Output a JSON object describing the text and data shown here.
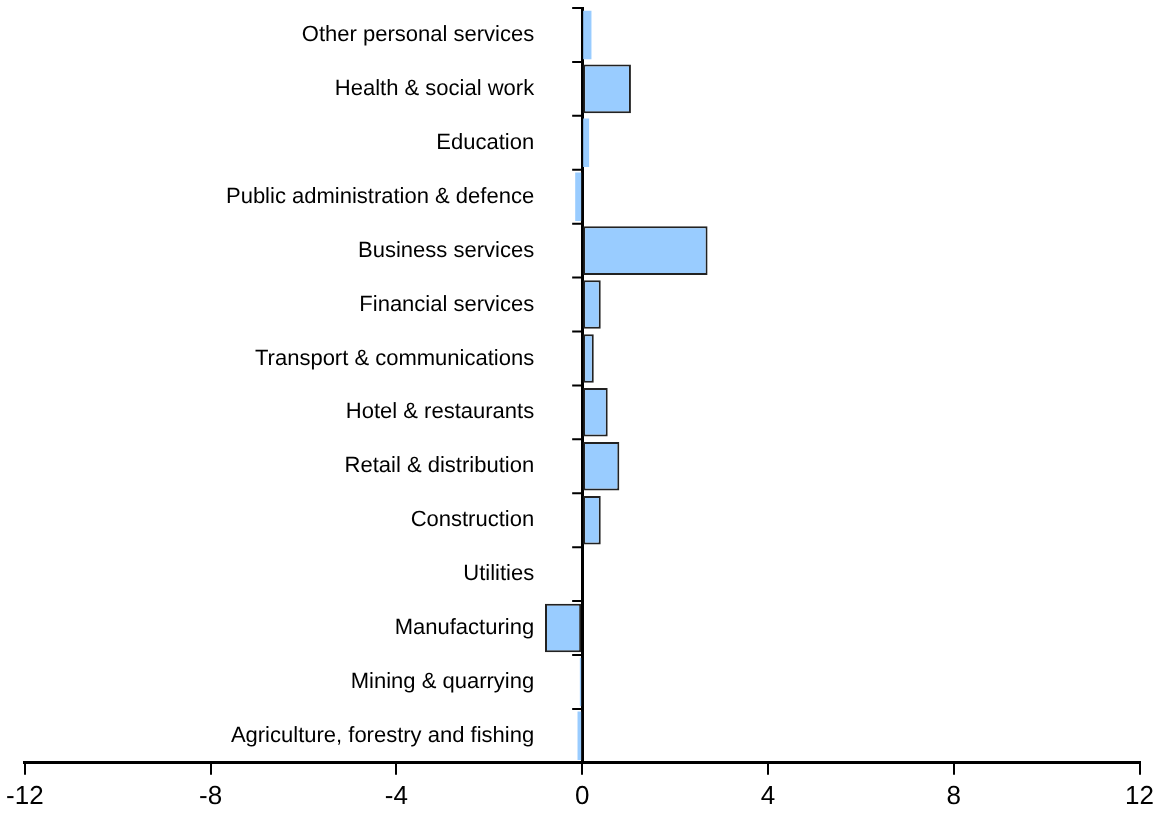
{
  "chart_data": {
    "type": "bar",
    "orientation": "horizontal",
    "categories": [
      "Other personal services",
      "Health & social work",
      "Education",
      "Public administration & defence",
      "Business services",
      "Financial services",
      "Transport & communications",
      "Hotel & restaurants",
      "Retail & distribution",
      "Construction",
      "Utilities",
      "Manufacturing",
      "Mining & quarrying",
      "Agriculture, forestry and fishing"
    ],
    "values": [
      0.2,
      1.05,
      0.15,
      -0.15,
      2.7,
      0.4,
      0.25,
      0.55,
      0.8,
      0.4,
      0,
      -0.8,
      -0.05,
      -0.1
    ],
    "color": "#99ccff",
    "xlim": [
      -12,
      12
    ],
    "xticks": [
      -12,
      -8,
      -4,
      0,
      4,
      8,
      12
    ],
    "grid": false,
    "legend": false
  }
}
